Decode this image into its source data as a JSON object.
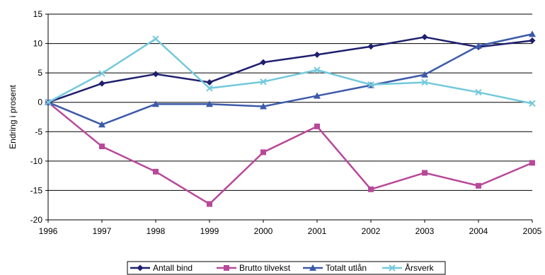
{
  "chart_data": {
    "type": "line",
    "title": "",
    "xlabel": "",
    "ylabel": "Endring i prosent",
    "ylim": [
      -20,
      15
    ],
    "yticks": [
      15,
      10,
      5,
      0,
      -5,
      -10,
      -15,
      -20
    ],
    "categories": [
      "1996",
      "1997",
      "1998",
      "1999",
      "2000",
      "2001",
      "2002",
      "2003",
      "2004",
      "2005"
    ],
    "grid": "horizontal",
    "legend_position": "bottom",
    "series": [
      {
        "name": "Antall bind",
        "color": "#1f1f6e",
        "marker": "diamond",
        "values": [
          0,
          3.2,
          4.8,
          3.4,
          6.8,
          8.1,
          9.5,
          11.1,
          9.4,
          10.5
        ]
      },
      {
        "name": "Brutto tilvekst",
        "color": "#b8489a",
        "marker": "square",
        "values": [
          0,
          -7.5,
          -11.8,
          -17.3,
          -8.5,
          -4.1,
          -14.8,
          -12.0,
          -14.2,
          -10.3
        ]
      },
      {
        "name": "Totalt utlån",
        "color": "#3d5aa9",
        "marker": "triangle",
        "values": [
          0,
          -3.8,
          -0.3,
          -0.3,
          -0.7,
          1.1,
          2.9,
          4.7,
          9.6,
          11.6
        ]
      },
      {
        "name": "Årsverk",
        "color": "#73c9dc",
        "marker": "x",
        "values": [
          0,
          4.9,
          10.8,
          2.4,
          3.5,
          5.5,
          3.0,
          3.4,
          1.7,
          -0.2
        ]
      }
    ]
  }
}
